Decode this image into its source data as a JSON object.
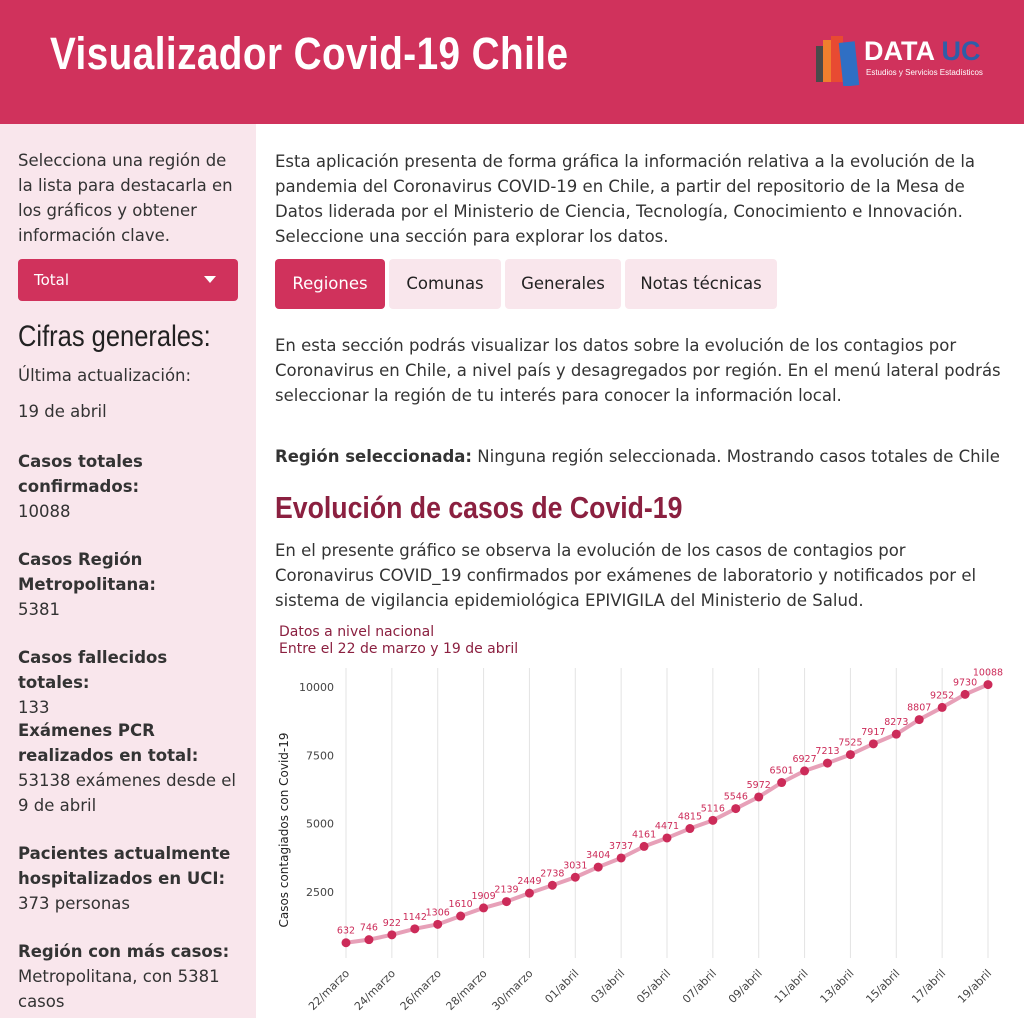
{
  "header": {
    "title": "Visualizador Covid-19 Chile",
    "logo_main": "DATA",
    "logo_accent": "UC",
    "logo_sub": "Estudios y Servicios Estadísticos"
  },
  "sidebar": {
    "intro": "Selecciona una región de la lista para destacarla en los gráficos y obtener información clave.",
    "select_value": "Total",
    "cifras_title": "Cifras generales:",
    "update_label": "Última actualización:",
    "update_value": "19 de abril",
    "stats": [
      {
        "label": "Casos totales confirmados:",
        "value": "10088"
      },
      {
        "label": "Casos Región Metropolitana:",
        "value": "5381"
      },
      {
        "label": "Casos fallecidos totales:",
        "value": "133"
      },
      {
        "label": "Exámenes PCR realizados en total:",
        "value": "53138 exámenes desde el 9 de abril"
      },
      {
        "label": "Pacientes actualmente hospitalizados en UCI:",
        "value": "373 personas"
      },
      {
        "label": "Región con más casos:",
        "value": "Metropolitana, con 5381 casos"
      }
    ]
  },
  "main": {
    "intro": "Esta aplicación presenta de forma gráfica la información relativa a la evolución de la pandemia del Coronavirus COVID-19 en Chile, a partir del repositorio de la Mesa de Datos liderada por el Ministerio de Ciencia, Tecnología, Conocimiento e Innovación. Seleccione una sección para explorar los datos.",
    "tabs": [
      {
        "label": "Regiones"
      },
      {
        "label": "Comunas"
      },
      {
        "label": "Generales"
      },
      {
        "label": "Notas técnicas"
      }
    ],
    "section_intro": "En esta sección podrás visualizar los datos sobre la evolución de los contagios por Coronavirus en Chile, a nivel país y desagregados por región. En el menú lateral podrás seleccionar la región de tu interés para conocer la información local.",
    "region_label": "Región seleccionada:",
    "region_value": " Ninguna región seleccionada. Mostrando casos totales de Chile",
    "section_title": "Evolución de casos de Covid-19",
    "section_desc": "En el presente gráfico se observa la evolución de los casos de contagios por Coronavirus COVID_19 confirmados por exámenes de laboratorio y notificados por el sistema de vigilancia epidemiológica EPIVIGILA del Ministerio de Salud."
  },
  "colors": {
    "brand": "#d0325c",
    "dark_brand": "#8b2040",
    "sidebar_bg": "#f9e6ec",
    "line": "#e7a0b8",
    "point": "#cc2b59"
  },
  "chart_data": {
    "type": "line",
    "title": "Datos a nivel nacional",
    "subtitle": "Entre el 22 de marzo y 19 de abril",
    "xlabel": "",
    "ylabel": "Casos contagiados con Covid-19",
    "x": [
      "22/marzo",
      "23/marzo",
      "24/marzo",
      "25/marzo",
      "26/marzo",
      "27/marzo",
      "28/marzo",
      "29/marzo",
      "30/marzo",
      "31/marzo",
      "01/abril",
      "02/abril",
      "03/abril",
      "04/abril",
      "05/abril",
      "06/abril",
      "07/abril",
      "08/abril",
      "09/abril",
      "10/abril",
      "11/abril",
      "12/abril",
      "13/abril",
      "14/abril",
      "15/abril",
      "16/abril",
      "17/abril",
      "18/abril",
      "19/abril"
    ],
    "x_tick_labels": [
      "22/marzo",
      "24/marzo",
      "26/marzo",
      "28/marzo",
      "30/marzo",
      "01/abril",
      "03/abril",
      "05/abril",
      "07/abril",
      "09/abril",
      "11/abril",
      "13/abril",
      "15/abril",
      "17/abril",
      "19/abril"
    ],
    "y_ticks": [
      "2500",
      "5000",
      "7500",
      "10000"
    ],
    "values": [
      632,
      746,
      922,
      1142,
      1306,
      1610,
      1909,
      2139,
      2449,
      2738,
      3031,
      3404,
      3737,
      4161,
      4471,
      4815,
      5116,
      5546,
      5972,
      6501,
      6927,
      7213,
      7525,
      7917,
      8273,
      8807,
      9252,
      9730,
      10088
    ],
    "grid": "vertical",
    "legend": "none"
  }
}
